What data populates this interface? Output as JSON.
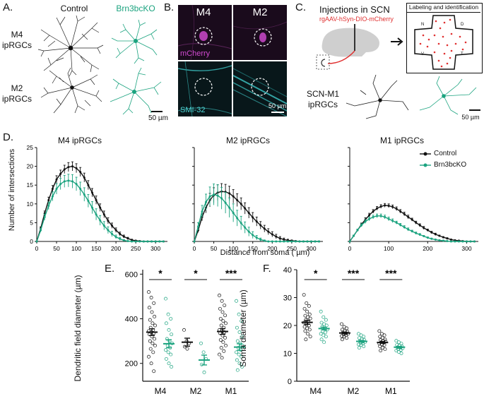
{
  "panels": {
    "A": {
      "letter": "A.",
      "col_control": "Control",
      "col_ko": "Brn3bcKO",
      "row1": [
        "M4",
        "ipRGCs"
      ],
      "row2": [
        "M2",
        "ipRGCs"
      ],
      "scalebar": "50 µm"
    },
    "B": {
      "letter": "B.",
      "col1": "M4",
      "col2": "M2",
      "stain1": "mCherry",
      "stain2": "SMI-32",
      "scalebar": "50 µm"
    },
    "C": {
      "letter": "C.",
      "injection_title": "Injections in SCN",
      "injection_virus": "rgAAV-hSyn-DIO-mCherry",
      "box_title": "Labeling and identification",
      "quadrants": [
        "N",
        "D",
        "V",
        "T"
      ],
      "cell_label": [
        "SCN-M1",
        "ipRGCs"
      ],
      "scalebar": "50 µm"
    },
    "D": {
      "letter": "D."
    },
    "E": {
      "letter": "E."
    },
    "F": {
      "letter": "F."
    }
  },
  "colors": {
    "control": "#111111",
    "ko": "#1ba37f",
    "magenta": "#c43ac4",
    "cyan": "#3fc5c5",
    "red": "#e03030"
  },
  "chart_data": [
    {
      "type": "line",
      "title": "M4 ipRGCs",
      "xlabel": "",
      "ylabel": "Number of intersections",
      "xlim": [
        0,
        330
      ],
      "ylim": [
        0,
        25
      ],
      "xticks": [
        0,
        50,
        100,
        150,
        200,
        250,
        300
      ],
      "yticks": [
        0,
        5,
        10,
        15,
        20,
        25
      ],
      "x": [
        0,
        10,
        20,
        30,
        40,
        50,
        60,
        70,
        80,
        90,
        100,
        110,
        120,
        130,
        140,
        150,
        160,
        170,
        180,
        190,
        200,
        210,
        220,
        230,
        240,
        250,
        260,
        270,
        280,
        290,
        300,
        310,
        320
      ],
      "series": [
        {
          "name": "Control",
          "values": [
            0,
            3.5,
            7.5,
            11,
            14,
            16.5,
            18,
            19.2,
            19.8,
            20,
            19.5,
            18.5,
            17,
            15,
            13,
            11,
            9,
            7.2,
            5.5,
            4.2,
            3,
            2,
            1.3,
            0.8,
            0.4,
            0.2,
            0.1,
            0,
            0,
            0,
            0,
            0,
            0
          ],
          "errors": [
            0,
            0.4,
            0.6,
            0.8,
            0.9,
            1,
            1,
            1.1,
            1.2,
            1.2,
            1.2,
            1.2,
            1.2,
            1.2,
            1.1,
            1.1,
            1,
            0.9,
            0.8,
            0.7,
            0.6,
            0.5,
            0.4,
            0.3,
            0.2,
            0.1,
            0.1,
            0,
            0,
            0,
            0,
            0,
            0
          ]
        },
        {
          "name": "Brn3bcKO",
          "values": [
            0,
            3,
            6.5,
            9.5,
            12,
            14,
            15.3,
            16,
            16.2,
            16,
            15.3,
            14,
            12.5,
            10.8,
            9,
            7.2,
            5.6,
            4.2,
            3,
            2,
            1.2,
            0.7,
            0.3,
            0.1,
            0,
            0,
            0,
            0,
            0,
            0,
            0,
            0,
            0
          ],
          "errors": [
            0,
            0.5,
            0.8,
            1,
            1.2,
            1.4,
            1.5,
            1.6,
            1.7,
            1.8,
            1.8,
            1.8,
            1.8,
            1.7,
            1.6,
            1.5,
            1.3,
            1.1,
            0.9,
            0.7,
            0.5,
            0.4,
            0.2,
            0.1,
            0,
            0,
            0,
            0,
            0,
            0,
            0,
            0,
            0
          ]
        }
      ]
    },
    {
      "type": "line",
      "title": "M2 ipRGCs",
      "xlabel": "Distance from soma (  µm)",
      "xlim": [
        0,
        330
      ],
      "ylim": [
        0,
        25
      ],
      "xticks": [
        0,
        50,
        100,
        150,
        200,
        250,
        300
      ],
      "x": [
        0,
        10,
        20,
        30,
        40,
        50,
        60,
        70,
        80,
        90,
        100,
        110,
        120,
        130,
        140,
        150,
        160,
        170,
        180,
        190,
        200,
        210,
        220,
        230,
        240,
        250,
        260,
        270,
        280,
        290,
        300,
        310,
        320
      ],
      "series": [
        {
          "name": "Control",
          "values": [
            0,
            3,
            6.5,
            9,
            11,
            12.3,
            13,
            13.3,
            13.2,
            12.8,
            12,
            11,
            10,
            8.8,
            7.6,
            6.4,
            5.3,
            4.3,
            3.4,
            2.6,
            1.9,
            1.3,
            0.8,
            0.5,
            0.3,
            0.2,
            0.1,
            0,
            0,
            0,
            0,
            0,
            0
          ],
          "errors": [
            0,
            0.6,
            1,
            1.4,
            1.8,
            2,
            2.1,
            2.1,
            2,
            1.9,
            1.8,
            1.7,
            1.6,
            1.5,
            1.4,
            1.3,
            1.2,
            1,
            0.9,
            0.8,
            0.7,
            0.6,
            0.5,
            0.4,
            0.3,
            0.2,
            0.1,
            0,
            0,
            0,
            0,
            0,
            0
          ]
        },
        {
          "name": "Brn3bcKO",
          "values": [
            0,
            4,
            8,
            10.5,
            12,
            12.5,
            12.2,
            11.5,
            10.3,
            9,
            7.6,
            6.2,
            4.9,
            3.7,
            2.6,
            1.7,
            1,
            0.5,
            0.2,
            0,
            0,
            0,
            0,
            0,
            0,
            0,
            0,
            0,
            0,
            0,
            0,
            0,
            0
          ],
          "errors": [
            0,
            1,
            1.6,
            2.1,
            2.5,
            2.8,
            2.9,
            2.9,
            2.8,
            2.6,
            2.4,
            2.1,
            1.8,
            1.5,
            1.2,
            0.9,
            0.6,
            0.4,
            0.2,
            0,
            0,
            0,
            0,
            0,
            0,
            0,
            0,
            0,
            0,
            0,
            0,
            0,
            0
          ]
        }
      ]
    },
    {
      "type": "line",
      "title": "M1 ipRGCs",
      "xlabel": "",
      "xlim": [
        0,
        330
      ],
      "ylim": [
        0,
        25
      ],
      "xticks": [
        0,
        100,
        200,
        300
      ],
      "x": [
        0,
        10,
        20,
        30,
        40,
        50,
        60,
        70,
        80,
        90,
        100,
        110,
        120,
        130,
        140,
        150,
        160,
        170,
        180,
        190,
        200,
        210,
        220,
        230,
        240,
        250,
        260,
        270,
        280,
        290,
        300,
        310,
        320
      ],
      "series": [
        {
          "name": "Control",
          "values": [
            0,
            1.5,
            3,
            4.5,
            5.8,
            7,
            8,
            8.8,
            9.3,
            9.6,
            9.5,
            9.2,
            8.7,
            8,
            7.3,
            6.5,
            5.8,
            5,
            4.3,
            3.6,
            3,
            2.4,
            1.9,
            1.5,
            1.1,
            0.8,
            0.5,
            0.3,
            0.2,
            0.1,
            0,
            0,
            0
          ],
          "errors": [
            0,
            0.2,
            0.3,
            0.4,
            0.5,
            0.5,
            0.5,
            0.5,
            0.5,
            0.5,
            0.5,
            0.5,
            0.5,
            0.5,
            0.5,
            0.5,
            0.4,
            0.4,
            0.4,
            0.4,
            0.3,
            0.3,
            0.3,
            0.2,
            0.2,
            0.2,
            0.1,
            0.1,
            0.1,
            0,
            0,
            0,
            0
          ]
        },
        {
          "name": "Brn3bcKO",
          "values": [
            0,
            1.5,
            3,
            4.3,
            5.3,
            6,
            6.5,
            6.8,
            6.8,
            6.5,
            6,
            5.5,
            5,
            4.4,
            3.8,
            3.2,
            2.7,
            2.2,
            1.8,
            1.4,
            1,
            0.7,
            0.5,
            0.3,
            0.2,
            0.1,
            0,
            0,
            0,
            0,
            0,
            0,
            0
          ],
          "errors": [
            0,
            0.2,
            0.3,
            0.4,
            0.5,
            0.5,
            0.5,
            0.5,
            0.5,
            0.5,
            0.5,
            0.5,
            0.4,
            0.4,
            0.4,
            0.4,
            0.3,
            0.3,
            0.3,
            0.2,
            0.2,
            0.2,
            0.1,
            0.1,
            0.1,
            0,
            0,
            0,
            0,
            0,
            0,
            0,
            0
          ]
        }
      ],
      "legend": {
        "placement": "top-right",
        "entries": [
          "Control",
          "Brn3bcKO"
        ]
      }
    },
    {
      "type": "scatter",
      "title": "",
      "ylabel": "Dendritic field diameter (µm)",
      "ylim": [
        120,
        620
      ],
      "yticks": [
        200,
        400,
        600
      ],
      "categories": [
        "M4",
        "M2",
        "M1"
      ],
      "significance": [
        "*",
        "*",
        "***"
      ],
      "series": [
        {
          "name": "Control",
          "means": [
            340,
            295,
            343
          ],
          "sems": [
            15,
            18,
            13
          ],
          "points": [
            [
              520,
              495,
              470,
              450,
              430,
              410,
              395,
              380,
              370,
              360,
              350,
              345,
              340,
              335,
              330,
              320,
              310,
              300,
              290,
              280,
              265,
              250,
              230,
              200,
              165
            ],
            [
              350,
              300,
              290,
              275,
              265
            ],
            [
              505,
              480,
              460,
              445,
              430,
              415,
              400,
              390,
              380,
              370,
              360,
              350,
              345,
              340,
              335,
              325,
              315,
              305,
              295,
              280,
              270,
              255,
              240,
              225
            ]
          ]
        },
        {
          "name": "Brn3bcKO",
          "means": [
            288,
            215,
            273
          ],
          "sems": [
            18,
            22,
            15
          ],
          "points": [
            [
              490,
              420,
              400,
              380,
              350,
              330,
              310,
              300,
              290,
              280,
              270,
              260,
              250,
              240,
              220,
              200,
              185
            ],
            [
              290,
              250,
              220,
              195,
              160
            ],
            [
              480,
              420,
              390,
              360,
              340,
              320,
              300,
              290,
              280,
              270,
              260,
              250,
              240,
              230,
              215,
              200,
              185,
              170
            ]
          ]
        }
      ]
    },
    {
      "type": "scatter",
      "title": "",
      "ylabel": "Soma diameter (µm)",
      "ylim": [
        0,
        40
      ],
      "yticks": [
        0,
        10,
        20,
        30,
        40
      ],
      "categories": [
        "M4",
        "M2",
        "M1"
      ],
      "significance": [
        "*",
        "***",
        "***"
      ],
      "series": [
        {
          "name": "Control",
          "means": [
            21.1,
            17.3,
            13.9
          ],
          "sems": [
            0.7,
            0.3,
            0.3
          ],
          "points": [
            [
              31,
              28,
              27,
              26,
              25,
              24,
              23.5,
              23,
              22.5,
              22,
              21.5,
              21,
              20.5,
              20,
              19.5,
              19,
              18.5,
              18,
              17,
              16,
              15
            ],
            [
              20.5,
              19.5,
              19,
              18.5,
              18,
              17.8,
              17.5,
              17.2,
              17,
              16.8,
              16.5,
              16.2,
              16,
              15.5,
              15
            ],
            [
              18,
              17,
              16.5,
              16,
              15.5,
              15,
              14.8,
              14.5,
              14.2,
              14,
              13.8,
              13.5,
              13.2,
              13,
              12.5,
              12,
              11.5,
              11
            ]
          ]
        },
        {
          "name": "Brn3bcKO",
          "means": [
            18.9,
            14.3,
            12.2
          ],
          "sems": [
            0.5,
            0.3,
            0.3
          ],
          "points": [
            [
              25,
              23,
              22,
              21,
              20.5,
              20,
              19.5,
              19,
              18.5,
              18,
              17.5,
              17,
              16.5,
              16,
              15,
              14
            ],
            [
              17,
              16.5,
              16,
              15.5,
              15,
              14.8,
              14.5,
              14.2,
              14,
              13.8,
              13.5,
              13.2,
              13,
              12.5,
              12
            ],
            [
              14.5,
              14,
              13.5,
              13,
              12.8,
              12.5,
              12.2,
              12,
              11.8,
              11.5,
              11.2,
              11,
              10.5,
              10
            ]
          ]
        }
      ]
    }
  ]
}
